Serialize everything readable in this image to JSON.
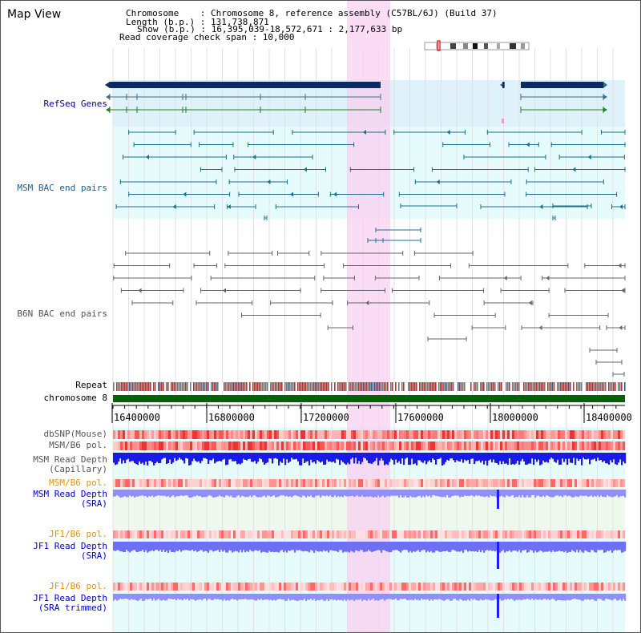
{
  "title": "Map View",
  "info": {
    "chromosome": "Chromosome    : Chromosome 8, reference assembly (C57BL/6J) (Build 37)",
    "length": "Length (b.p.) : 131,738,871",
    "show": "Show (b.p.) : 16,395,039-18,572,671 : 2,177,633 bp",
    "coverage": "Read coverage check span : 10,000"
  },
  "tracks": {
    "refseq": "RefSeq Genes",
    "msm_bac": "MSM BAC end pairs",
    "b6n_bac": "B6N BAC end pairs",
    "repeat": "Repeat",
    "chromosome": "chromosome 8",
    "dbsnp": "dbSNP(Mouse)",
    "msm_b6_pol": "MSM/B6 pol.",
    "msm_read_cap_1": "MSM Read Depth",
    "msm_read_cap_2": "(Capillary)",
    "msm_b6_pol_2": "MSM/B6 pol.",
    "msm_read_sra_1": "MSM Read Depth",
    "msm_read_sra_2": "(SRA)",
    "jf1_b6_pol": "JF1/B6 pol.",
    "jf1_read_sra_1": "JF1 Read Depth",
    "jf1_read_sra_2": "(SRA)",
    "jf1_b6_pol_2": "JF1/B6 pol.",
    "jf1_read_trim_1": "JF1 Read Depth",
    "jf1_read_trim_2": "(SRA trimmed)"
  },
  "axis": {
    "ticks": [
      "16400000",
      "16800000",
      "17200000",
      "17600000",
      "18000000",
      "18400000"
    ]
  },
  "colors": {
    "refseq": "#00008b",
    "msm_label": "#1a5e80",
    "b6n_label": "#555555",
    "orange": "#e69500",
    "blue": "#0000cc",
    "highlight": "#f8d0f0",
    "chromosome": "#006400"
  }
}
